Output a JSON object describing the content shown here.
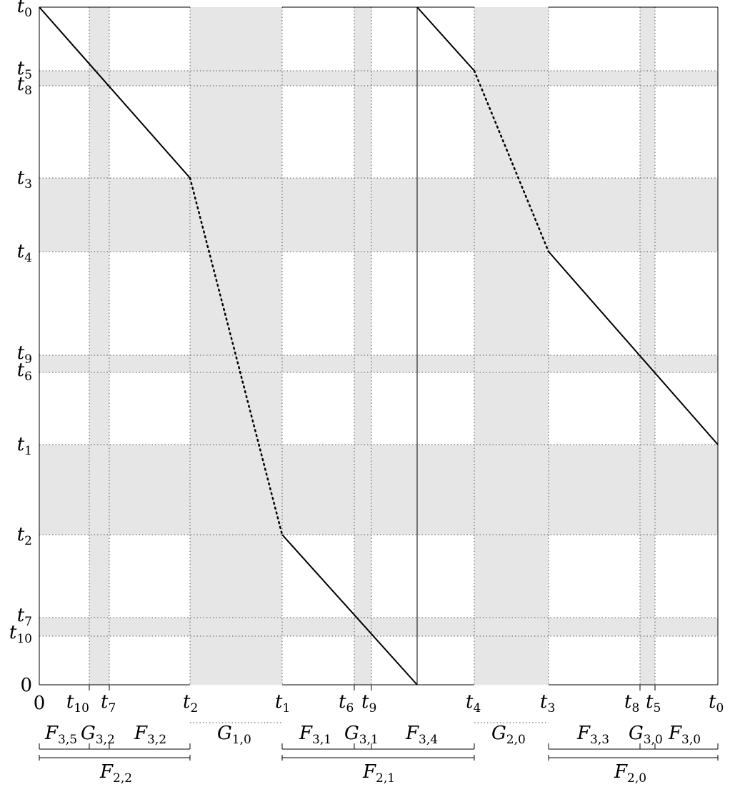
{
  "y_axis": [
    {
      "key": "t0",
      "base": "t",
      "sub": "0"
    },
    {
      "key": "t5",
      "base": "t",
      "sub": "5"
    },
    {
      "key": "t8",
      "base": "t",
      "sub": "8"
    },
    {
      "key": "t3",
      "base": "t",
      "sub": "3"
    },
    {
      "key": "t4",
      "base": "t",
      "sub": "4"
    },
    {
      "key": "t9",
      "base": "t",
      "sub": "9"
    },
    {
      "key": "t6",
      "base": "t",
      "sub": "6"
    },
    {
      "key": "t1",
      "base": "t",
      "sub": "1"
    },
    {
      "key": "t2",
      "base": "t",
      "sub": "2"
    },
    {
      "key": "t7",
      "base": "t",
      "sub": "7"
    },
    {
      "key": "t10",
      "base": "t",
      "sub": "10"
    },
    {
      "key": "zero",
      "base": "0",
      "sub": ""
    }
  ],
  "x_axis": [
    {
      "key": "zero",
      "base": "0",
      "sub": ""
    },
    {
      "key": "t10",
      "base": "t",
      "sub": "10"
    },
    {
      "key": "t7",
      "base": "t",
      "sub": "7"
    },
    {
      "key": "t2",
      "base": "t",
      "sub": "2"
    },
    {
      "key": "t1",
      "base": "t",
      "sub": "1"
    },
    {
      "key": "t6",
      "base": "t",
      "sub": "6"
    },
    {
      "key": "t9",
      "base": "t",
      "sub": "9"
    },
    {
      "key": "t4",
      "base": "t",
      "sub": "4"
    },
    {
      "key": "t3",
      "base": "t",
      "sub": "3"
    },
    {
      "key": "t8",
      "base": "t",
      "sub": "8"
    },
    {
      "key": "t5",
      "base": "t",
      "sub": "5"
    },
    {
      "key": "t0",
      "base": "t",
      "sub": "0"
    }
  ],
  "segments_row1": [
    {
      "base": "F",
      "sub": "3,5"
    },
    {
      "base": "G",
      "sub": "3,2"
    },
    {
      "base": "F",
      "sub": "3,2"
    },
    {
      "base": "G",
      "sub": "1,0"
    },
    {
      "base": "F",
      "sub": "3,1"
    },
    {
      "base": "G",
      "sub": "3,1"
    },
    {
      "base": "F",
      "sub": "3,4"
    },
    {
      "base": "G",
      "sub": "2,0"
    },
    {
      "base": "F",
      "sub": "3,3"
    },
    {
      "base": "G",
      "sub": "3,0"
    },
    {
      "base": "F",
      "sub": "3,0"
    }
  ],
  "segments_row2": [
    {
      "base": "F",
      "sub": "2,2"
    },
    {
      "base": "F",
      "sub": "2,1"
    },
    {
      "base": "F",
      "sub": "2,0"
    }
  ],
  "colors": {
    "band": "#e6e6e6",
    "line": "#000000",
    "grid": "#555555"
  }
}
